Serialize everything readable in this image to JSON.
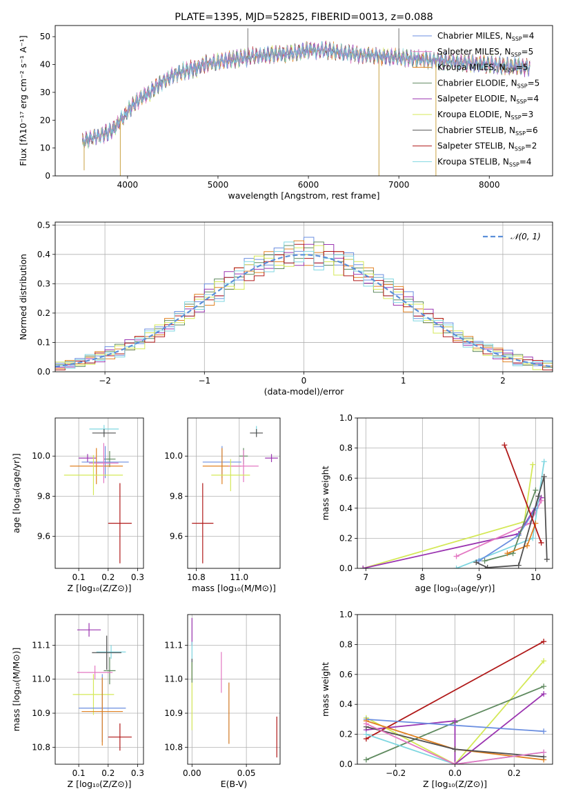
{
  "colors": {
    "chabrier_miles": "#6a8ee0",
    "salpeter_miles": "#e377c2",
    "kroupa_miles": "#e08020",
    "chabrier_elodie": "#5f8a5f",
    "salpeter_elodie": "#9a33b0",
    "kroupa_elodie": "#d4e857",
    "chabrier_stelib": "#505050",
    "salpeter_stelib": "#b01818",
    "kroupa_stelib": "#7ed6e0",
    "normal_curve": "#5b8fd9"
  },
  "chart_data": [
    {
      "id": "spectrum",
      "type": "line",
      "title": "PLATE=1395, MJD=52825, FIBERID=0013, z=0.088",
      "xlabel": "wavelength [Angstrom, rest frame]",
      "ylabel": "Flux [fλ10⁻¹⁷ erg cm⁻² s⁻¹ A⁻¹]",
      "xlim": [
        3200,
        8700
      ],
      "ylim": [
        0,
        54
      ],
      "xticks": [
        4000,
        5000,
        6000,
        7000,
        8000
      ],
      "yticks": [
        0,
        10,
        20,
        30,
        40,
        50
      ],
      "grid": false,
      "legend_position": "top-right",
      "continuum": {
        "x": [
          3500,
          3560,
          3650,
          3750,
          3850,
          3950,
          4050,
          4150,
          4250,
          4350,
          4450,
          4550,
          4650,
          4750,
          4850,
          5000,
          5200,
          5400,
          5600,
          5800,
          6000,
          6200,
          6400,
          6600,
          6800,
          7000,
          7200,
          7400,
          7600,
          7800,
          8000,
          8200,
          8450
        ],
        "y": [
          12,
          13,
          14,
          15,
          17,
          21,
          25,
          28,
          30,
          33,
          35,
          37,
          38,
          38.5,
          40,
          41,
          42,
          43,
          43.5,
          44,
          45,
          45,
          44,
          43.5,
          43,
          42.5,
          42,
          41.5,
          41,
          40.5,
          40,
          39.5,
          39
        ]
      },
      "spikes": [
        {
          "x": 3520,
          "y": 2
        },
        {
          "x": 3920,
          "y": 0
        },
        {
          "x": 5330,
          "y": 53
        },
        {
          "x": 6780,
          "y": 0
        },
        {
          "x": 7000,
          "y": 53
        },
        {
          "x": 7410,
          "y": 0
        }
      ],
      "legend": [
        {
          "label": "Chabrier MILES, N",
          "sub": "SSP",
          "value": "=4",
          "color_key": "chabrier_miles"
        },
        {
          "label": "Salpeter MILES, N",
          "sub": "SSP",
          "value": "=5",
          "color_key": "salpeter_miles"
        },
        {
          "label": "Kroupa MILES, N",
          "sub": "SSP",
          "value": "=5",
          "color_key": "kroupa_miles"
        },
        {
          "label": "Chabrier ELODIE, N",
          "sub": "SSP",
          "value": "=5",
          "color_key": "chabrier_elodie"
        },
        {
          "label": "Salpeter ELODIE, N",
          "sub": "SSP",
          "value": "=4",
          "color_key": "salpeter_elodie"
        },
        {
          "label": "Kroupa ELODIE, N",
          "sub": "SSP",
          "value": "=3",
          "color_key": "kroupa_elodie"
        },
        {
          "label": "Chabrier STELIB, N",
          "sub": "SSP",
          "value": "=6",
          "color_key": "chabrier_stelib"
        },
        {
          "label": "Salpeter STELIB, N",
          "sub": "SSP",
          "value": "=2",
          "color_key": "salpeter_stelib"
        },
        {
          "label": "Kroupa STELIB, N",
          "sub": "SSP",
          "value": "=4",
          "color_key": "kroupa_stelib"
        }
      ]
    },
    {
      "id": "residuals",
      "type": "bar",
      "xlabel": "(data-model)/error",
      "ylabel": "Normed distribution",
      "xlim": [
        -2.5,
        2.5
      ],
      "ylim": [
        0,
        0.51
      ],
      "xticks": [
        -2,
        -1,
        0,
        1,
        2
      ],
      "yticks": [
        0.0,
        0.1,
        0.2,
        0.3,
        0.4,
        0.5
      ],
      "grid": true,
      "legend_position": "top-right",
      "legend": [
        {
          "label": "𝒩(0, 1)",
          "color_key": "normal_curve"
        }
      ],
      "bins": {
        "start": -2.5,
        "width": 0.1,
        "count": 50
      },
      "series": [
        {
          "color_key": "chabrier_miles",
          "peak": 0.4,
          "jitter": [
            0.02,
            -0.01,
            0.03,
            -0.02,
            0.01,
            0.05,
            -0.03,
            0.02,
            -0.01,
            0.04
          ]
        },
        {
          "color_key": "kroupa_miles",
          "peak": 0.4,
          "jitter": [
            -0.02,
            0.03,
            -0.01,
            0.02,
            0.04,
            -0.03,
            0.01,
            -0.02,
            0.03,
            0.0
          ]
        },
        {
          "color_key": "chabrier_elodie",
          "peak": 0.4,
          "jitter": [
            0.01,
            0.02,
            -0.03,
            0.03,
            -0.01,
            0.02,
            0.04,
            -0.02,
            0.0,
            -0.01
          ]
        },
        {
          "color_key": "salpeter_elodie",
          "peak": 0.4,
          "jitter": [
            -0.01,
            -0.02,
            0.02,
            0.01,
            -0.03,
            0.03,
            -0.02,
            0.04,
            0.01,
            0.02
          ]
        },
        {
          "color_key": "kroupa_elodie",
          "peak": 0.4,
          "jitter": [
            0.03,
            0.01,
            -0.02,
            -0.03,
            0.02,
            0.0,
            0.03,
            -0.01,
            -0.04,
            0.02
          ]
        },
        {
          "color_key": "salpeter_stelib",
          "peak": 0.4,
          "jitter": [
            -0.03,
            0.0,
            0.01,
            -0.02,
            0.03,
            -0.01,
            -0.02,
            0.02,
            0.03,
            -0.03
          ]
        },
        {
          "color_key": "kroupa_stelib",
          "peak": 0.4,
          "jitter": [
            0.0,
            -0.03,
            0.02,
            0.04,
            -0.02,
            0.01,
            -0.04,
            0.0,
            0.02,
            0.03
          ]
        }
      ]
    },
    {
      "id": "z_vs_age",
      "type": "scatter",
      "xlabel": "Z [log₁₀(Z/Z⊙)]",
      "ylabel": "age  [log₁₀(age/yr)]",
      "xlim": [
        0.02,
        0.32
      ],
      "ylim": [
        9.44,
        10.19
      ],
      "xticks": [
        0.1,
        0.2,
        0.3
      ],
      "yticks": [
        9.6,
        9.8,
        10.0
      ],
      "grid": true,
      "points": [
        {
          "x": 0.186,
          "y": 10.135,
          "xerr": 0.05,
          "yerr": 0.02,
          "color_key": "kroupa_stelib"
        },
        {
          "x": 0.186,
          "y": 10.115,
          "xerr": 0.04,
          "yerr": 0.02,
          "color_key": "chabrier_stelib"
        },
        {
          "x": 0.13,
          "y": 9.99,
          "xerr": 0.03,
          "yerr": 0.02,
          "color_key": "salpeter_elodie"
        },
        {
          "x": 0.205,
          "y": 9.985,
          "xerr": 0.02,
          "yerr": 0.04,
          "color_key": "chabrier_elodie"
        },
        {
          "x": 0.19,
          "y": 9.97,
          "xerr": 0.08,
          "yerr": 0.08,
          "color_key": "chabrier_miles"
        },
        {
          "x": 0.16,
          "y": 9.95,
          "xerr": 0.09,
          "yerr": 0.09,
          "color_key": "kroupa_miles"
        },
        {
          "x": 0.185,
          "y": 9.965,
          "xerr": 0.05,
          "yerr": 0.1,
          "color_key": "salpeter_miles"
        },
        {
          "x": 0.15,
          "y": 9.905,
          "xerr": 0.1,
          "yerr": 0.1,
          "color_key": "kroupa_elodie"
        },
        {
          "x": 0.24,
          "y": 9.665,
          "xerr": 0.04,
          "yerr": 0.2,
          "color_key": "salpeter_stelib"
        }
      ]
    },
    {
      "id": "mass_vs_age",
      "type": "scatter",
      "xlabel": "mass [log₁₀(M/M⊙)]",
      "ylabel": "",
      "xlim": [
        10.76,
        11.19
      ],
      "ylim": [
        9.44,
        10.19
      ],
      "xticks": [
        10.8,
        11.0
      ],
      "yticks": [
        9.6,
        9.8,
        10.0
      ],
      "grid": true,
      "points": [
        {
          "x": 11.08,
          "y": 10.13,
          "xerr": 0.0,
          "yerr": 0.02,
          "color_key": "kroupa_stelib"
        },
        {
          "x": 11.08,
          "y": 10.115,
          "xerr": 0.03,
          "yerr": 0.02,
          "color_key": "chabrier_stelib"
        },
        {
          "x": 11.15,
          "y": 9.99,
          "xerr": 0.03,
          "yerr": 0.02,
          "color_key": "salpeter_elodie"
        },
        {
          "x": 11.02,
          "y": 10.0,
          "xerr": 0.02,
          "yerr": 0.04,
          "color_key": "chabrier_elodie"
        },
        {
          "x": 10.92,
          "y": 9.97,
          "xerr": 0.09,
          "yerr": 0.08,
          "color_key": "chabrier_miles"
        },
        {
          "x": 10.92,
          "y": 9.95,
          "xerr": 0.09,
          "yerr": 0.09,
          "color_key": "kroupa_miles"
        },
        {
          "x": 11.02,
          "y": 9.95,
          "xerr": 0.07,
          "yerr": 0.08,
          "color_key": "salpeter_miles"
        },
        {
          "x": 10.96,
          "y": 9.905,
          "xerr": 0.09,
          "yerr": 0.08,
          "color_key": "kroupa_elodie"
        },
        {
          "x": 10.83,
          "y": 9.665,
          "xerr": 0.05,
          "yerr": 0.2,
          "color_key": "salpeter_stelib"
        }
      ]
    },
    {
      "id": "age_vs_weight",
      "type": "line",
      "xlabel": "age  [log₁₀(age/yr)]",
      "ylabel": "mass weight",
      "xlim": [
        6.85,
        10.3
      ],
      "ylim": [
        0,
        1.0
      ],
      "xticks": [
        7,
        8,
        9,
        10
      ],
      "yticks": [
        0.0,
        0.2,
        0.4,
        0.6,
        0.8,
        1.0
      ],
      "grid": true,
      "series": [
        {
          "color_key": "kroupa_elodie",
          "x": [
            6.95,
            9.8,
            9.95
          ],
          "y": [
            0.0,
            0.31,
            0.69
          ]
        },
        {
          "color_key": "salpeter_elodie",
          "x": [
            6.95,
            9.7,
            10.1
          ],
          "y": [
            0.0,
            0.23,
            0.47
          ]
        },
        {
          "color_key": "salpeter_miles",
          "x": [
            8.6,
            9.9,
            10.1
          ],
          "y": [
            0.08,
            0.3,
            0.45
          ]
        },
        {
          "color_key": "kroupa_stelib",
          "x": [
            8.6,
            9.95,
            10.15
          ],
          "y": [
            0.0,
            0.2,
            0.71
          ]
        },
        {
          "color_key": "chabrier_miles",
          "x": [
            9.0,
            9.7,
            10.0
          ],
          "y": [
            0.05,
            0.22,
            0.4
          ]
        },
        {
          "color_key": "chabrier_elodie",
          "x": [
            9.1,
            9.6,
            10.0
          ],
          "y": [
            0.05,
            0.1,
            0.52
          ]
        },
        {
          "color_key": "kroupa_miles",
          "x": [
            9.5,
            9.85,
            10.0
          ],
          "y": [
            0.1,
            0.15,
            0.3
          ]
        },
        {
          "color_key": "chabrier_stelib",
          "x": [
            8.95,
            9.15,
            9.7,
            10.05,
            10.15,
            10.2
          ],
          "y": [
            0.04,
            0.005,
            0.02,
            0.48,
            0.61,
            0.06
          ]
        },
        {
          "color_key": "salpeter_stelib",
          "x": [
            9.45,
            10.1
          ],
          "y": [
            0.82,
            0.17
          ]
        }
      ]
    },
    {
      "id": "z_vs_mass",
      "type": "scatter",
      "xlabel": "Z [log₁₀(Z/Z⊙)]",
      "ylabel": "mass [log₁₀(M/M⊙)]",
      "xlim": [
        0.02,
        0.32
      ],
      "ylim": [
        10.75,
        11.19
      ],
      "xticks": [
        0.1,
        0.2,
        0.3
      ],
      "yticks": [
        10.8,
        10.9,
        11.0,
        11.1
      ],
      "grid": true,
      "points": [
        {
          "x": 0.135,
          "y": 11.145,
          "xerr": 0.04,
          "yerr": 0.02,
          "color_key": "salpeter_elodie"
        },
        {
          "x": 0.21,
          "y": 11.08,
          "xerr": 0.05,
          "yerr": 0.02,
          "color_key": "kroupa_stelib"
        },
        {
          "x": 0.195,
          "y": 11.078,
          "xerr": 0.05,
          "yerr": 0.05,
          "color_key": "chabrier_stelib"
        },
        {
          "x": 0.205,
          "y": 11.025,
          "xerr": 0.02,
          "yerr": 0.04,
          "color_key": "chabrier_elodie"
        },
        {
          "x": 0.155,
          "y": 11.02,
          "xerr": 0.06,
          "yerr": 0.02,
          "color_key": "salpeter_miles"
        },
        {
          "x": 0.15,
          "y": 10.955,
          "xerr": 0.07,
          "yerr": 0.06,
          "color_key": "kroupa_elodie"
        },
        {
          "x": 0.18,
          "y": 10.915,
          "xerr": 0.08,
          "yerr": 0.1,
          "color_key": "chabrier_miles"
        },
        {
          "x": 0.18,
          "y": 10.905,
          "xerr": 0.07,
          "yerr": 0.1,
          "color_key": "kroupa_miles"
        },
        {
          "x": 0.24,
          "y": 10.83,
          "xerr": 0.04,
          "yerr": 0.04,
          "color_key": "salpeter_stelib"
        }
      ]
    },
    {
      "id": "ebv_vs_mass",
      "type": "scatter",
      "xlabel": "E(B-V)",
      "ylabel": "",
      "xlim": [
        -0.004,
        0.081
      ],
      "ylim": [
        10.75,
        11.19
      ],
      "xticks": [
        0.0,
        0.05
      ],
      "tick_labels": [
        "0.00",
        "0.05"
      ],
      "yticks": [
        10.8,
        10.9,
        11.0,
        11.1
      ],
      "grid": true,
      "points": [
        {
          "x": 0.0,
          "y": 11.14,
          "xerr": 0.0,
          "yerr": 0.04,
          "color_key": "salpeter_elodie"
        },
        {
          "x": 0.0,
          "y": 11.07,
          "xerr": 0.0,
          "yerr": 0.04,
          "color_key": "kroupa_stelib"
        },
        {
          "x": 0.0,
          "y": 11.03,
          "xerr": 0.0,
          "yerr": 0.03,
          "color_key": "chabrier_stelib"
        },
        {
          "x": 0.0,
          "y": 10.95,
          "xerr": 0.0,
          "yerr": 0.1,
          "color_key": "kroupa_elodie"
        },
        {
          "x": 0.0,
          "y": 11.02,
          "xerr": 0.0,
          "yerr": 0.03,
          "color_key": "chabrier_elodie"
        },
        {
          "x": 0.027,
          "y": 11.02,
          "xerr": 0.0,
          "yerr": 0.06,
          "color_key": "salpeter_miles"
        },
        {
          "x": 0.034,
          "y": 10.9,
          "xerr": 0.0,
          "yerr": 0.09,
          "color_key": "chabrier_miles"
        },
        {
          "x": 0.034,
          "y": 10.9,
          "xerr": 0.0,
          "yerr": 0.09,
          "color_key": "kroupa_miles"
        },
        {
          "x": 0.078,
          "y": 10.83,
          "xerr": 0.0,
          "yerr": 0.06,
          "color_key": "salpeter_stelib"
        }
      ]
    },
    {
      "id": "z_vs_weight",
      "type": "line",
      "xlabel": "Z [log₁₀(Z/Z⊙)]",
      "ylabel": "mass weight",
      "xlim": [
        -0.33,
        0.33
      ],
      "ylim": [
        0,
        1.0
      ],
      "xticks": [
        -0.2,
        0.0,
        0.2
      ],
      "tick_labels": [
        "−0.2",
        "0.0",
        "0.2"
      ],
      "yticks": [
        0.0,
        0.2,
        0.4,
        0.6,
        0.8,
        1.0
      ],
      "grid": true,
      "series": [
        {
          "color_key": "salpeter_stelib",
          "x": [
            -0.3,
            0.3
          ],
          "y": [
            0.17,
            0.82
          ]
        },
        {
          "color_key": "kroupa_elodie",
          "x": [
            -0.3,
            0.0,
            0.3
          ],
          "y": [
            0.31,
            0.0,
            0.69
          ]
        },
        {
          "color_key": "chabrier_elodie",
          "x": [
            -0.3,
            0.0,
            0.3
          ],
          "y": [
            0.03,
            0.28,
            0.52
          ]
        },
        {
          "color_key": "salpeter_elodie",
          "x": [
            -0.3,
            0.0,
            0.0,
            0.3
          ],
          "y": [
            0.23,
            0.29,
            0.0,
            0.47
          ]
        },
        {
          "color_key": "chabrier_miles",
          "x": [
            -0.3,
            0.3
          ],
          "y": [
            0.3,
            0.22
          ]
        },
        {
          "color_key": "kroupa_miles",
          "x": [
            -0.3,
            0.0,
            0.3
          ],
          "y": [
            0.29,
            0.1,
            0.03
          ]
        },
        {
          "color_key": "chabrier_stelib",
          "x": [
            -0.3,
            0.0,
            0.3
          ],
          "y": [
            0.25,
            0.1,
            0.05
          ]
        },
        {
          "color_key": "kroupa_stelib",
          "x": [
            -0.3,
            0.0,
            0.3
          ],
          "y": [
            0.2,
            0.0,
            0.08
          ]
        },
        {
          "color_key": "salpeter_miles",
          "x": [
            -0.3,
            0.0,
            0.3
          ],
          "y": [
            0.27,
            0.0,
            0.08
          ]
        }
      ]
    }
  ]
}
